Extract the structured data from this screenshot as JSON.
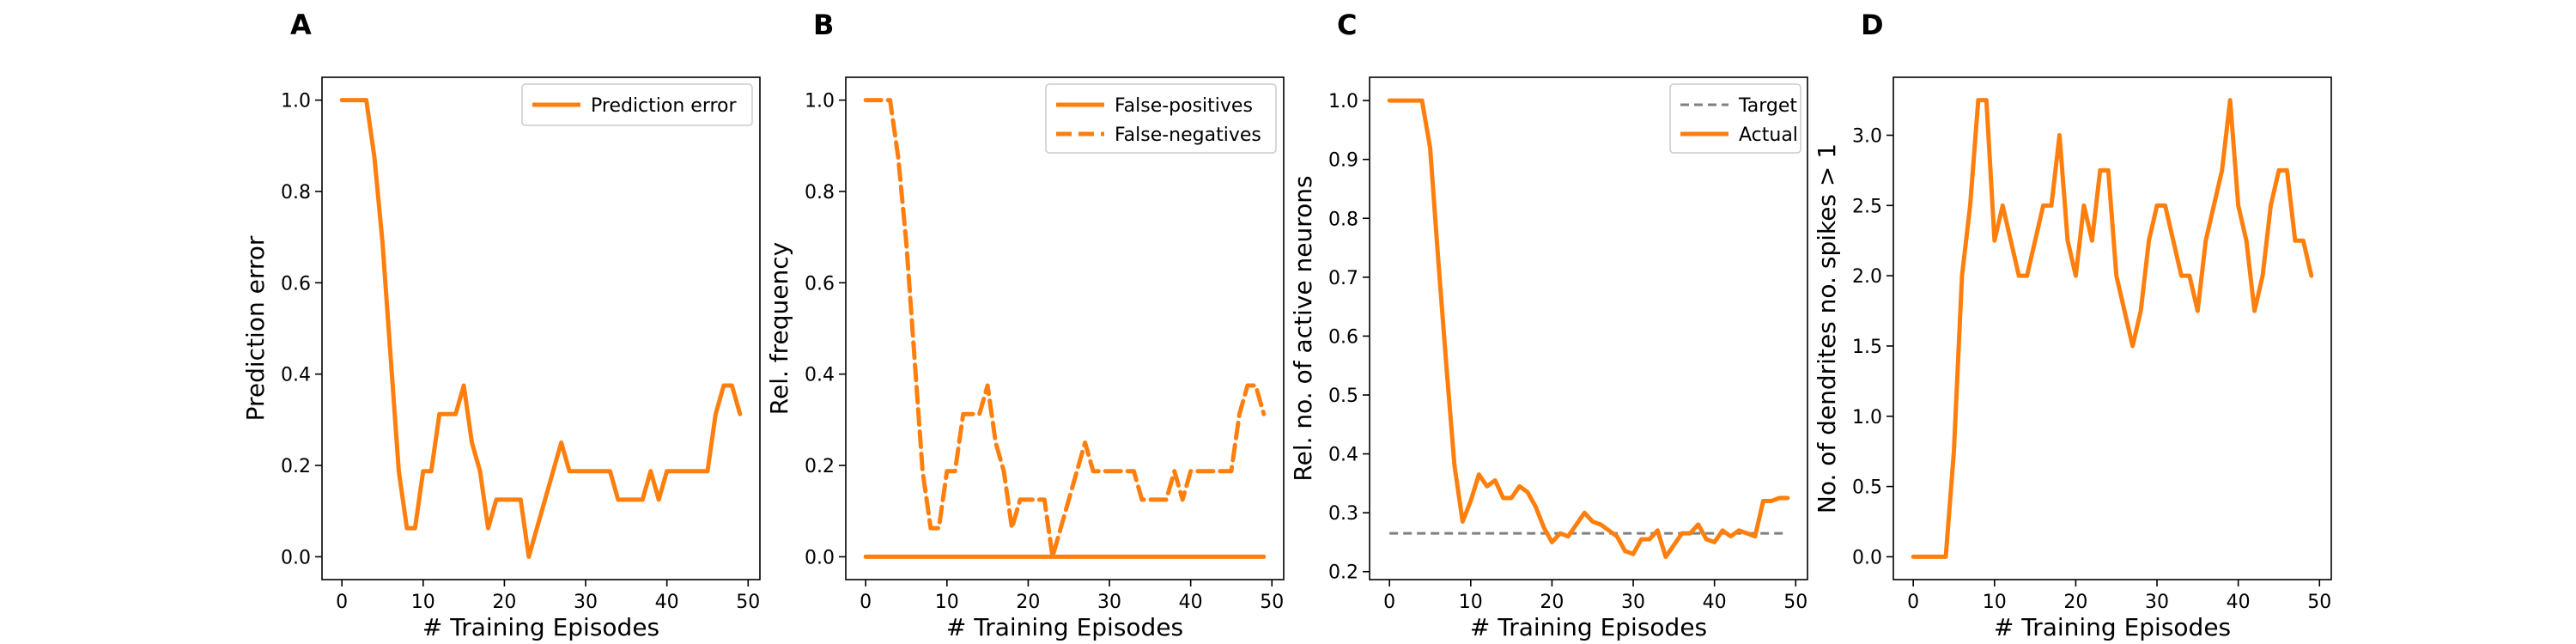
{
  "figure": {
    "panel_letters": [
      "A",
      "B",
      "C",
      "D"
    ],
    "colors": {
      "line": "#ff7f0e",
      "target": "#808080",
      "axis": "#000000",
      "background": "#ffffff"
    }
  },
  "chart_data": [
    {
      "type": "line",
      "panel": "A",
      "xlabel": "# Training Episodes",
      "ylabel": "Prediction error",
      "xlim": [
        -2.45,
        51.45
      ],
      "ylim": [
        -0.05,
        1.05
      ],
      "xticks": [
        0,
        10,
        20,
        30,
        40,
        50
      ],
      "xtick_labels": [
        "0",
        "10",
        "20",
        "30",
        "40",
        "50"
      ],
      "yticks": [
        0.0,
        0.2,
        0.4,
        0.6,
        0.8,
        1.0
      ],
      "ytick_labels": [
        "0.0",
        "0.2",
        "0.4",
        "0.6",
        "0.8",
        "1.0"
      ],
      "grid": false,
      "legend": "upper right",
      "series": [
        {
          "name": "Prediction error",
          "style": "solid",
          "color": "#ff7f0e",
          "x": [
            0,
            1,
            2,
            3,
            4,
            5,
            6,
            7,
            8,
            9,
            10,
            11,
            12,
            13,
            14,
            15,
            16,
            17,
            18,
            19,
            20,
            21,
            22,
            23,
            24,
            25,
            26,
            27,
            28,
            29,
            30,
            31,
            32,
            33,
            34,
            35,
            36,
            37,
            38,
            39,
            40,
            41,
            42,
            43,
            44,
            45,
            46,
            47,
            48,
            49
          ],
          "y": [
            1.0,
            1.0,
            1.0,
            1.0,
            0.875,
            0.6875,
            0.4375,
            0.1875,
            0.0625,
            0.0625,
            0.1875,
            0.1875,
            0.3125,
            0.3125,
            0.3125,
            0.375,
            0.25,
            0.1875,
            0.0625,
            0.125,
            0.125,
            0.125,
            0.125,
            0.0,
            0.0625,
            0.125,
            0.1875,
            0.25,
            0.1875,
            0.1875,
            0.1875,
            0.1875,
            0.1875,
            0.1875,
            0.125,
            0.125,
            0.125,
            0.125,
            0.1875,
            0.125,
            0.1875,
            0.1875,
            0.1875,
            0.1875,
            0.1875,
            0.1875,
            0.3125,
            0.375,
            0.375,
            0.3125
          ]
        }
      ]
    },
    {
      "type": "line",
      "panel": "B",
      "xlabel": "# Training Episodes",
      "ylabel": "Rel. frequency",
      "xlim": [
        -2.45,
        51.45
      ],
      "ylim": [
        -0.05,
        1.05
      ],
      "xticks": [
        0,
        10,
        20,
        30,
        40,
        50
      ],
      "xtick_labels": [
        "0",
        "10",
        "20",
        "30",
        "40",
        "50"
      ],
      "yticks": [
        0.0,
        0.2,
        0.4,
        0.6,
        0.8,
        1.0
      ],
      "ytick_labels": [
        "0.0",
        "0.2",
        "0.4",
        "0.6",
        "0.8",
        "1.0"
      ],
      "grid": false,
      "legend": "upper right",
      "series": [
        {
          "name": "False-positives",
          "style": "solid",
          "color": "#ff7f0e",
          "x": [
            0,
            49
          ],
          "y": [
            0.0,
            0.0
          ]
        },
        {
          "name": "False-negatives",
          "style": "dashed",
          "color": "#ff7f0e",
          "x": [
            0,
            1,
            2,
            3,
            4,
            5,
            6,
            7,
            8,
            9,
            10,
            11,
            12,
            13,
            14,
            15,
            16,
            17,
            18,
            19,
            20,
            21,
            22,
            23,
            24,
            25,
            26,
            27,
            28,
            29,
            30,
            31,
            32,
            33,
            34,
            35,
            36,
            37,
            38,
            39,
            40,
            41,
            42,
            43,
            44,
            45,
            46,
            47,
            48,
            49
          ],
          "y": [
            1.0,
            1.0,
            1.0,
            1.0,
            0.875,
            0.6875,
            0.4375,
            0.1875,
            0.0625,
            0.0625,
            0.1875,
            0.1875,
            0.3125,
            0.3125,
            0.3125,
            0.375,
            0.25,
            0.1875,
            0.0625,
            0.125,
            0.125,
            0.125,
            0.125,
            0.0,
            0.0625,
            0.125,
            0.1875,
            0.25,
            0.1875,
            0.1875,
            0.1875,
            0.1875,
            0.1875,
            0.1875,
            0.125,
            0.125,
            0.125,
            0.125,
            0.1875,
            0.125,
            0.1875,
            0.1875,
            0.1875,
            0.1875,
            0.1875,
            0.1875,
            0.3125,
            0.375,
            0.375,
            0.3125
          ]
        }
      ]
    },
    {
      "type": "line",
      "panel": "C",
      "xlabel": "# Training Episodes",
      "ylabel": "Rel. no. of active neurons",
      "xlim": [
        -2.45,
        51.45
      ],
      "ylim": [
        0.1865,
        1.0395
      ],
      "xticks": [
        0,
        10,
        20,
        30,
        40,
        50
      ],
      "xtick_labels": [
        "0",
        "10",
        "20",
        "30",
        "40",
        "50"
      ],
      "yticks": [
        0.2,
        0.3,
        0.4,
        0.5,
        0.6,
        0.7,
        0.8,
        0.9,
        1.0
      ],
      "ytick_labels": [
        "0.2",
        "0.3",
        "0.4",
        "0.5",
        "0.6",
        "0.7",
        "0.8",
        "0.9",
        "1.0"
      ],
      "grid": false,
      "legend": "upper right",
      "series": [
        {
          "name": "Target",
          "style": "dashed",
          "color": "#808080",
          "x": [
            0,
            49
          ],
          "y": [
            0.265,
            0.265
          ]
        },
        {
          "name": "Actual",
          "style": "solid",
          "color": "#ff7f0e",
          "x": [
            0,
            1,
            2,
            3,
            4,
            5,
            6,
            7,
            8,
            9,
            10,
            11,
            12,
            13,
            14,
            15,
            16,
            17,
            18,
            19,
            20,
            21,
            22,
            23,
            24,
            25,
            26,
            27,
            28,
            29,
            30,
            31,
            32,
            33,
            34,
            35,
            36,
            37,
            38,
            39,
            40,
            41,
            42,
            43,
            44,
            45,
            46,
            47,
            48,
            49
          ],
          "y": [
            1.0,
            1.0,
            1.0,
            1.0,
            1.0,
            0.92,
            0.73,
            0.55,
            0.38,
            0.285,
            0.32,
            0.365,
            0.345,
            0.355,
            0.325,
            0.325,
            0.345,
            0.335,
            0.31,
            0.275,
            0.25,
            0.265,
            0.26,
            0.28,
            0.3,
            0.285,
            0.28,
            0.27,
            0.26,
            0.235,
            0.23,
            0.255,
            0.255,
            0.27,
            0.225,
            0.245,
            0.265,
            0.265,
            0.28,
            0.255,
            0.25,
            0.27,
            0.26,
            0.27,
            0.265,
            0.26,
            0.32,
            0.32,
            0.325,
            0.325
          ]
        }
      ]
    },
    {
      "type": "line",
      "panel": "D",
      "xlabel": "# Training Episodes",
      "ylabel": "No. of dendrites no. spikes > 1",
      "xlim": [
        -2.45,
        51.45
      ],
      "ylim": [
        -0.1625,
        3.4125
      ],
      "xticks": [
        0,
        10,
        20,
        30,
        40,
        50
      ],
      "xtick_labels": [
        "0",
        "10",
        "20",
        "30",
        "40",
        "50"
      ],
      "yticks": [
        0.0,
        0.5,
        1.0,
        1.5,
        2.0,
        2.5,
        3.0
      ],
      "ytick_labels": [
        "0.0",
        "0.5",
        "1.0",
        "1.5",
        "2.0",
        "2.5",
        "3.0"
      ],
      "grid": false,
      "legend": "none",
      "series": [
        {
          "style": "solid",
          "color": "#ff7f0e",
          "x": [
            0,
            1,
            2,
            3,
            4,
            5,
            6,
            7,
            8,
            9,
            10,
            11,
            12,
            13,
            14,
            15,
            16,
            17,
            18,
            19,
            20,
            21,
            22,
            23,
            24,
            25,
            26,
            27,
            28,
            29,
            30,
            31,
            32,
            33,
            34,
            35,
            36,
            37,
            38,
            39,
            40,
            41,
            42,
            43,
            44,
            45,
            46,
            47,
            48,
            49
          ],
          "y": [
            0.0,
            0.0,
            0.0,
            0.0,
            0.0,
            0.75,
            2.0,
            2.5,
            3.25,
            3.25,
            2.25,
            2.5,
            2.25,
            2.0,
            2.0,
            2.25,
            2.5,
            2.5,
            3.0,
            2.25,
            2.0,
            2.5,
            2.25,
            2.75,
            2.75,
            2.0,
            1.75,
            1.5,
            1.75,
            2.25,
            2.5,
            2.5,
            2.25,
            2.0,
            2.0,
            1.75,
            2.25,
            2.5,
            2.75,
            3.25,
            2.5,
            2.25,
            1.75,
            2.0,
            2.5,
            2.75,
            2.75,
            2.25,
            2.25,
            2.0
          ]
        }
      ]
    }
  ]
}
